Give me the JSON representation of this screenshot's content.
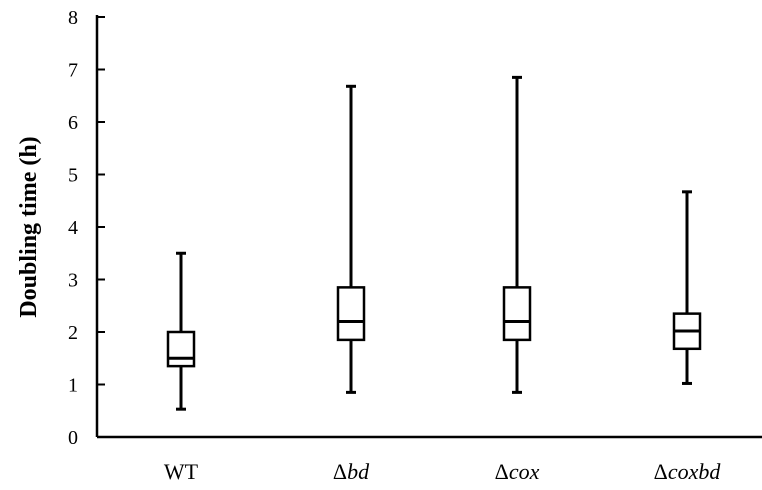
{
  "chart_data": {
    "type": "box",
    "ylabel": "Doubling time (h)",
    "ylim": [
      0,
      8
    ],
    "yticks": [
      "0",
      "1",
      "2",
      "3",
      "4",
      "5",
      "6",
      "7",
      "8"
    ],
    "categories": [
      {
        "prefix": "",
        "italic": "",
        "plain": "WT"
      },
      {
        "prefix": "Δ",
        "italic": "bd",
        "plain": ""
      },
      {
        "prefix": "Δ",
        "italic": "cox",
        "plain": ""
      },
      {
        "prefix": "Δ",
        "italic": "coxbd",
        "plain": ""
      }
    ],
    "boxes": [
      {
        "min": 0.53,
        "q1": 1.35,
        "median": 1.5,
        "q3": 2.0,
        "max": 3.5
      },
      {
        "min": 0.85,
        "q1": 1.85,
        "median": 2.2,
        "q3": 2.85,
        "max": 6.68
      },
      {
        "min": 0.85,
        "q1": 1.85,
        "median": 2.2,
        "q3": 2.85,
        "max": 6.85
      },
      {
        "min": 1.02,
        "q1": 1.68,
        "median": 2.02,
        "q3": 2.35,
        "max": 4.67
      }
    ],
    "grid": false,
    "legend": "none"
  }
}
